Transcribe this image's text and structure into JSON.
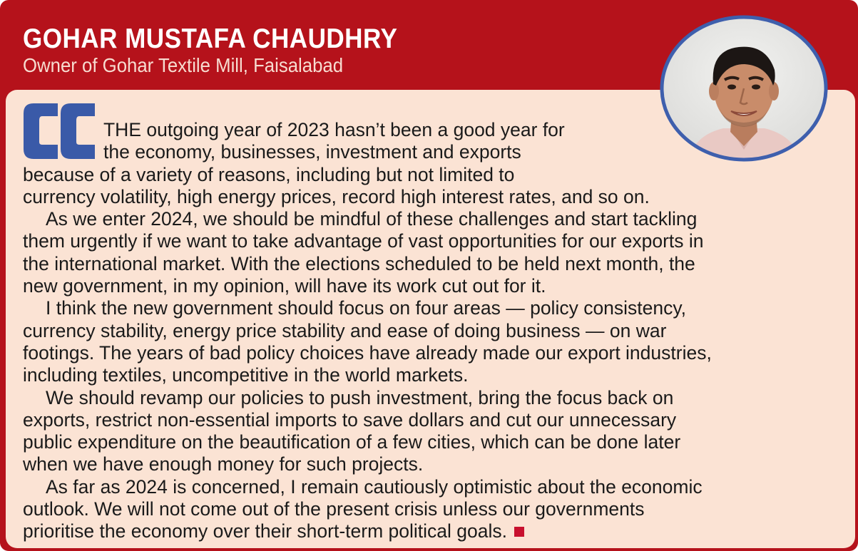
{
  "header": {
    "name": "GOHAR MUSTAFA CHAUDHRY",
    "role": "Owner of Gohar Textile Mill, Faisalabad"
  },
  "icons": {
    "quote": "open-quote-icon",
    "end": "end-square-icon",
    "portrait": "person-portrait-icon"
  },
  "colors": {
    "header_red": "#b5121b",
    "panel_cream": "#fbe3d4",
    "quote_blue": "#3a5aa8",
    "end_mark_red": "#c8102e"
  },
  "article": {
    "lines": [
      "THE outgoing year of 2023 hasn’t been a good year for",
      "the economy, businesses, investment and exports",
      "because of a variety of reasons, including but not limited to",
      "currency volatility, high energy prices, record high interest rates, and so on.",
      "As we enter 2024, we should be mindful of these challenges and start tackling",
      "them urgently if we want to take advantage of vast opportunities for our exports in",
      "the international market. With the elections scheduled to be held next month, the",
      "new government, in my opinion, will have its work cut out for it.",
      "I think the new government should focus on four areas — policy consistency,",
      "currency stability, energy price stability and ease of doing business — on war",
      "footings. The years of bad policy choices have already made our export industries,",
      "including textiles, uncompetitive in the world markets.",
      "We should revamp our policies to push investment, bring the focus back on",
      "exports, restrict non-essential imports to save dollars and cut our unnecessary",
      "public expenditure on the beautification of a few cities, which can be done later",
      "when we have enough money for such projects.",
      "As far as 2024 is concerned, I remain cautiously optimistic about the economic",
      "outlook. We will not come out of the present crisis unless our governments",
      "prioritise the economy over their short-term political goals."
    ]
  }
}
